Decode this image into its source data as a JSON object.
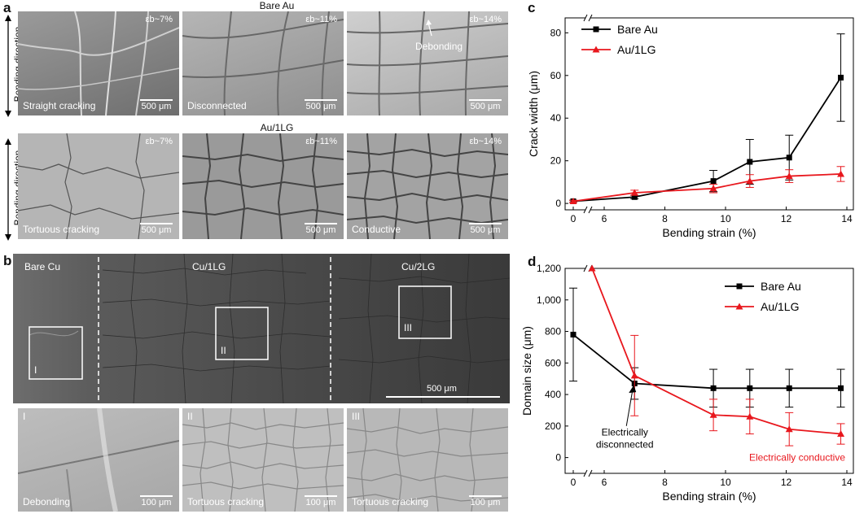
{
  "panel_a": {
    "letter": "a",
    "row1_title": "Bare Au",
    "row2_title": "Au/1LG",
    "side_label": "Bending direction",
    "row1": [
      {
        "strain": "εb~7%",
        "caption": "Straight cracking",
        "scale": "500 μm"
      },
      {
        "strain": "εb~11%",
        "caption": "Disconnected",
        "scale": "500 μm"
      },
      {
        "strain": "εb~14%",
        "caption": "",
        "scale": "500 μm",
        "annotation": "Debonding"
      }
    ],
    "row2": [
      {
        "strain": "εb~7%",
        "caption": "Tortuous cracking",
        "scale": "500 μm"
      },
      {
        "strain": "εb~11%",
        "caption": "",
        "scale": "500 μm"
      },
      {
        "strain": "εb~14%",
        "caption": "Conductive",
        "scale": "500 μm"
      }
    ]
  },
  "panel_b": {
    "letter": "b",
    "regions": [
      "Bare Cu",
      "Cu/1LG",
      "Cu/2LG"
    ],
    "boxes": [
      "I",
      "II",
      "III"
    ],
    "scale": "500 μm",
    "insets": [
      {
        "id": "I",
        "caption": "Debonding",
        "scale": "100 μm"
      },
      {
        "id": "II",
        "caption": "Tortuous cracking",
        "scale": "100 μm"
      },
      {
        "id": "III",
        "caption": "Tortuous cracking",
        "scale": "100 μm"
      }
    ]
  },
  "chart_data": [
    {
      "panel": "c",
      "type": "line",
      "xlabel": "Bending strain (%)",
      "ylabel": "Crack width (μm)",
      "xticks": [
        "0",
        "6",
        "8",
        "10",
        "12",
        "14"
      ],
      "yticks": [
        "0",
        "20",
        "40",
        "60",
        "80"
      ],
      "ylim": [
        -3,
        87
      ],
      "axis_break": "between 0 and 6",
      "legend_position": "top-left",
      "series": [
        {
          "name": "Bare Au",
          "color": "#000000",
          "marker": "square",
          "x": [
            0,
            7,
            9.6,
            10.8,
            12.1,
            13.8
          ],
          "y": [
            1,
            3,
            10.5,
            19.5,
            21.5,
            59
          ],
          "err": [
            0.5,
            0.8,
            5,
            10.5,
            10.5,
            20.5
          ]
        },
        {
          "name": "Au/1LG",
          "color": "#e8171d",
          "marker": "triangle",
          "x": [
            0,
            7,
            9.6,
            10.8,
            12.1,
            13.8
          ],
          "y": [
            1,
            5,
            7,
            10.5,
            12.8,
            13.8
          ],
          "err": [
            0.5,
            1.2,
            2,
            3,
            3,
            3.5
          ]
        }
      ]
    },
    {
      "panel": "d",
      "type": "line",
      "xlabel": "Bending strain (%)",
      "ylabel": "Domain size (μm)",
      "xticks": [
        "0",
        "6",
        "8",
        "10",
        "12",
        "14"
      ],
      "yticks": [
        "0",
        "200",
        "400",
        "600",
        "800",
        "1,000",
        "1,200"
      ],
      "ylim": [
        -100,
        1200
      ],
      "axis_break": "between 0 and 6",
      "legend_position": "top-right",
      "annotations": [
        "Electrically disconnected",
        "Electrically conductive"
      ],
      "series": [
        {
          "name": "Bare Au",
          "color": "#000000",
          "marker": "square",
          "x": [
            0,
            7,
            9.6,
            10.8,
            12.1,
            13.8
          ],
          "y": [
            780,
            470,
            440,
            440,
            440,
            440
          ],
          "err": [
            295,
            100,
            120,
            120,
            120,
            120
          ]
        },
        {
          "name": "Au/1LG",
          "color": "#e8171d",
          "marker": "triangle",
          "x": [
            5.6,
            7,
            9.6,
            10.8,
            12.1,
            13.8
          ],
          "y": [
            1200,
            520,
            270,
            260,
            180,
            150
          ],
          "err": [
            null,
            255,
            100,
            110,
            105,
            65
          ]
        }
      ]
    }
  ]
}
